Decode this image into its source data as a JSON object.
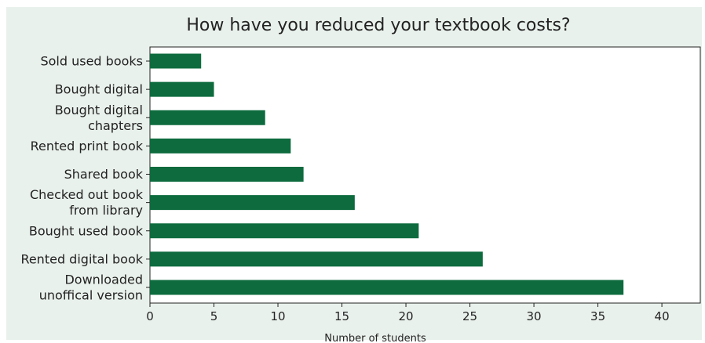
{
  "chart_data": {
    "type": "bar",
    "orientation": "horizontal",
    "title": "How have you reduced your textbook costs?",
    "xlabel": "Number of students",
    "ylabel": "",
    "xlim": [
      0,
      43
    ],
    "xticks": [
      0,
      5,
      10,
      15,
      20,
      25,
      30,
      35,
      40
    ],
    "grid": false,
    "bar_color": "#0d6b3e",
    "background_color": "#e9f1ec",
    "categories": [
      [
        "Sold used books"
      ],
      [
        "Bought digital"
      ],
      [
        "Bought digital",
        "chapters"
      ],
      [
        "Rented print book"
      ],
      [
        "Shared book"
      ],
      [
        "Checked out book",
        "from library"
      ],
      [
        "Bought used book"
      ],
      [
        "Rented digital book"
      ],
      [
        "Downloaded",
        "unoffical version"
      ]
    ],
    "values": [
      4,
      5,
      9,
      11,
      12,
      16,
      21,
      26,
      37
    ]
  }
}
